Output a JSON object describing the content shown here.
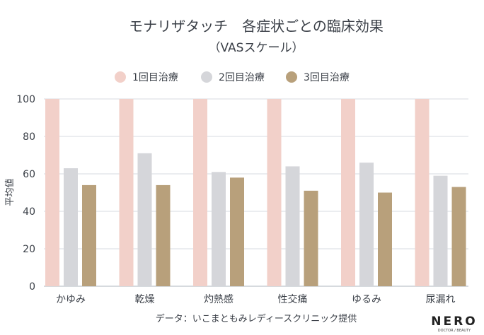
{
  "chart_data": {
    "type": "bar",
    "title": "モナリザタッチ　各症状ごとの臨床効果",
    "subtitle": "（VASスケール）",
    "ylabel": "平均値",
    "xlabel": "",
    "ylim": [
      0,
      100
    ],
    "yticks": [
      0,
      20,
      40,
      60,
      80,
      100
    ],
    "grid": true,
    "legend": "top",
    "categories": [
      "かゆみ",
      "乾燥",
      "灼熱感",
      "性交痛",
      "ゆるみ",
      "尿漏れ"
    ],
    "series": [
      {
        "name": "1回目治療",
        "color": "#f2d0c9",
        "values": [
          100,
          100,
          100,
          100,
          100,
          100
        ]
      },
      {
        "name": "2回目治療",
        "color": "#d5d6da",
        "values": [
          63,
          71,
          61,
          64,
          66,
          59
        ]
      },
      {
        "name": "3回目治療",
        "color": "#b8a07b",
        "values": [
          54,
          54,
          58,
          51,
          50,
          53
        ]
      }
    ],
    "source": "データ：いこまともみレディースクリニック提供"
  },
  "logo": {
    "name": "NERO",
    "tagline": "DOCTOR / BEAUTY"
  }
}
